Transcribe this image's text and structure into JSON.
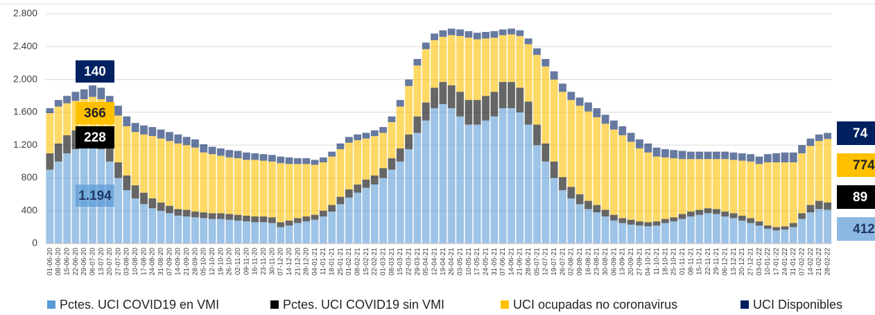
{
  "chart_data": {
    "type": "stacked-bar",
    "categories": [
      "01-06-20",
      "08-06-20",
      "15-06-20",
      "22-06-20",
      "29-06-20",
      "06-07-20",
      "13-07-20",
      "20-07-20",
      "27-07-20",
      "03-08-20",
      "10-08-20",
      "17-08-20",
      "24-08-20",
      "31-08-20",
      "07-09-20",
      "14-09-20",
      "21-09-20",
      "28-09-20",
      "05-10-20",
      "12-10-20",
      "19-10-20",
      "26-10-20",
      "02-11-20",
      "09-11-20",
      "16-11-20",
      "23-11-20",
      "30-11-20",
      "07-12-20",
      "14-12-20",
      "21-12-20",
      "28-12-20",
      "04-01-21",
      "11-01-21",
      "18-01-21",
      "25-01-21",
      "01-02-21",
      "08-02-21",
      "15-02-21",
      "22-02-21",
      "01-03-21",
      "08-03-21",
      "15-03-21",
      "22-03-21",
      "29-03-21",
      "05-04-21",
      "12-04-21",
      "19-04-21",
      "26-04-21",
      "03-05-21",
      "10-05-21",
      "17-05-21",
      "24-05-21",
      "31-05-21",
      "07-06-21",
      "14-06-21",
      "21-06-21",
      "28-06-21",
      "05-07-21",
      "12-07-21",
      "19-07-21",
      "26-07-21",
      "02-08-21",
      "09-08-21",
      "16-08-21",
      "23-08-21",
      "30-08-21",
      "06-09-21",
      "13-09-21",
      "20-09-21",
      "27-09-21",
      "04-10-21",
      "11-10-21",
      "18-10-21",
      "25-10-21",
      "01-11-21",
      "08-11-21",
      "15-11-21",
      "22-11-21",
      "29-11-21",
      "06-12-21",
      "13-12-21",
      "20-12-21",
      "27-12-21",
      "03-01-22",
      "10-01-22",
      "17-01-22",
      "24-01-22",
      "31-01-22",
      "07-02-22",
      "14-02-22",
      "21-02-22",
      "28-02-22"
    ],
    "series": [
      {
        "name": "Pctes. UCI COVID19 en VMI",
        "color": "#5b9bd5",
        "values": [
          900,
          1000,
          1100,
          1150,
          1190,
          1194,
          1150,
          1000,
          800,
          650,
          550,
          480,
          430,
          400,
          370,
          340,
          330,
          320,
          310,
          300,
          300,
          290,
          280,
          270,
          260,
          260,
          250,
          200,
          220,
          250,
          270,
          290,
          330,
          390,
          480,
          560,
          620,
          680,
          720,
          800,
          900,
          1000,
          1150,
          1350,
          1500,
          1650,
          1700,
          1650,
          1550,
          1450,
          1450,
          1500,
          1550,
          1650,
          1650,
          1600,
          1450,
          1200,
          1000,
          800,
          650,
          550,
          480,
          420,
          380,
          330,
          280,
          250,
          230,
          220,
          210,
          220,
          250,
          270,
          300,
          330,
          350,
          370,
          360,
          330,
          310,
          280,
          250,
          220,
          180,
          160,
          170,
          200,
          300,
          380,
          420,
          412
        ]
      },
      {
        "name": "Pctes. UCI COVID19 sin VMI",
        "color": "#000000",
        "values": [
          200,
          220,
          220,
          230,
          230,
          228,
          220,
          200,
          190,
          180,
          160,
          140,
          120,
          100,
          90,
          80,
          80,
          70,
          70,
          70,
          70,
          70,
          70,
          70,
          70,
          70,
          70,
          60,
          60,
          60,
          60,
          60,
          70,
          80,
          90,
          100,
          100,
          100,
          110,
          120,
          140,
          160,
          180,
          200,
          220,
          250,
          270,
          280,
          300,
          300,
          300,
          300,
          300,
          320,
          320,
          300,
          280,
          250,
          220,
          200,
          160,
          140,
          120,
          100,
          90,
          80,
          70,
          60,
          60,
          50,
          50,
          50,
          50,
          50,
          60,
          60,
          60,
          60,
          60,
          60,
          60,
          60,
          60,
          50,
          40,
          40,
          40,
          50,
          70,
          90,
          100,
          89
        ]
      },
      {
        "name": "UCI ocupadas no coronavirus",
        "color": "#ffc000",
        "values": [
          490,
          450,
          390,
          360,
          340,
          366,
          390,
          470,
          570,
          600,
          650,
          710,
          760,
          780,
          790,
          800,
          790,
          780,
          730,
          720,
          700,
          690,
          690,
          680,
          690,
          680,
          680,
          720,
          690,
          660,
          640,
          610,
          590,
          590,
          580,
          570,
          540,
          500,
          480,
          430,
          440,
          510,
          590,
          620,
          650,
          580,
          550,
          610,
          680,
          760,
          740,
          700,
          660,
          570,
          580,
          630,
          700,
          850,
          940,
          1000,
          1040,
          1060,
          1080,
          1090,
          1070,
          1050,
          1040,
          1010,
          950,
          890,
          850,
          790,
          750,
          720,
          670,
          640,
          620,
          600,
          610,
          640,
          650,
          670,
          690,
          700,
          770,
          790,
          780,
          740,
          730,
          720,
          730,
          774
        ]
      },
      {
        "name": "UCI Disponibles",
        "color": "#002060",
        "values": [
          60,
          80,
          90,
          110,
          120,
          140,
          140,
          130,
          120,
          120,
          110,
          110,
          110,
          110,
          110,
          110,
          100,
          100,
          100,
          90,
          90,
          90,
          90,
          90,
          80,
          80,
          80,
          80,
          80,
          70,
          70,
          60,
          60,
          60,
          70,
          70,
          70,
          70,
          70,
          70,
          70,
          80,
          80,
          80,
          80,
          80,
          80,
          80,
          80,
          80,
          80,
          80,
          80,
          70,
          70,
          70,
          70,
          80,
          90,
          100,
          100,
          100,
          100,
          110,
          110,
          110,
          110,
          110,
          110,
          110,
          110,
          110,
          100,
          100,
          100,
          90,
          90,
          90,
          90,
          90,
          90,
          90,
          90,
          90,
          100,
          110,
          120,
          120,
          100,
          90,
          80,
          74
        ]
      }
    ],
    "ylim": [
      0,
      2800
    ],
    "yticks": [
      0,
      400,
      800,
      {
        "value": 1200,
        "label": "1.200"
      },
      {
        "value": 1600,
        "label": "1.600"
      },
      {
        "value": 2000,
        "label": "2.000"
      },
      {
        "value": 2400,
        "label": "2.400"
      },
      {
        "value": 2800,
        "label": "2.800"
      }
    ],
    "grid": true,
    "annotations": [
      "140",
      "366",
      "228",
      "1.194"
    ],
    "end_labels": [
      "74",
      "774",
      "89",
      "412"
    ]
  }
}
